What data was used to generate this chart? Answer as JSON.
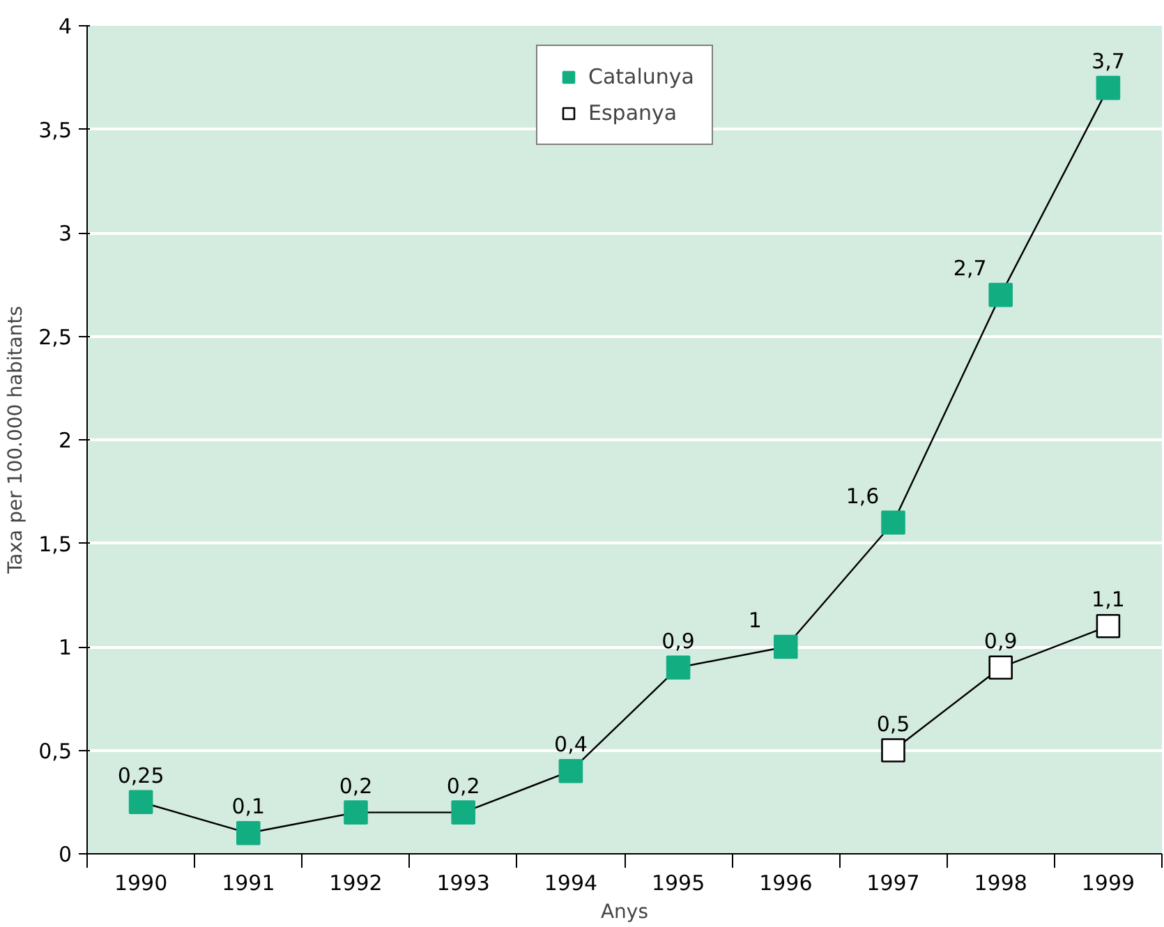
{
  "chart_data": {
    "type": "line",
    "xlabel": "Anys",
    "ylabel": "Taxa per 100.000 habitants",
    "categories": [
      "1990",
      "1991",
      "1992",
      "1993",
      "1994",
      "1995",
      "1996",
      "1997",
      "1998",
      "1999"
    ],
    "series": [
      {
        "name": "Catalunya",
        "color": "#12ae82",
        "values": [
          0.25,
          0.1,
          0.2,
          0.2,
          0.4,
          0.9,
          1,
          1.6,
          2.7,
          3.7
        ],
        "value_labels": [
          "0,25",
          "0,1",
          "0,2",
          "0,2",
          "0,4",
          "0,9",
          "1",
          "1,6",
          "2,7",
          "3,7"
        ]
      },
      {
        "name": "Espanya",
        "color": "#ffffff",
        "values": [
          null,
          null,
          null,
          null,
          null,
          null,
          null,
          0.5,
          0.9,
          1.1
        ],
        "value_labels": [
          null,
          null,
          null,
          null,
          null,
          null,
          null,
          "0,5",
          "0,9",
          "1,1"
        ]
      }
    ],
    "ylim": [
      0,
      4
    ],
    "yticks": [
      0,
      {
        "value": 0.5,
        "label": "0,5"
      },
      1,
      {
        "value": 1.5,
        "label": "1,5"
      },
      2,
      {
        "value": 2.5,
        "label": "2,5"
      },
      3,
      {
        "value": 3.5,
        "label": "3,5"
      },
      4
    ],
    "grid": "y",
    "legend": "top",
    "marker": "square",
    "line_style": "solid"
  }
}
